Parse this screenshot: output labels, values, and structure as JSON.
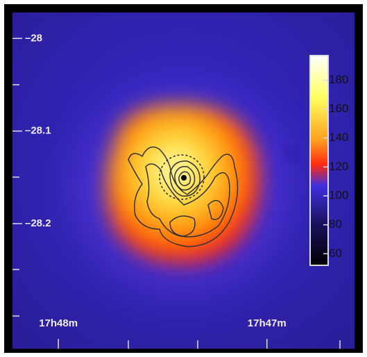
{
  "chart_data": {
    "type": "sky-map",
    "xlim": [
      1068.22,
      1066.58
    ],
    "xticks": [
      {
        "value": 1068,
        "label": "17h48m"
      },
      {
        "value": 1067,
        "label": "17h47m"
      }
    ],
    "ylim": [
      -28.335,
      -27.972
    ],
    "yticks": [
      {
        "value": -28,
        "label": "–28"
      },
      {
        "value": -28.1,
        "label": "–28.1"
      },
      {
        "value": -28.2,
        "label": "–28.2"
      }
    ],
    "colorbar": {
      "lim": [
        52,
        197
      ],
      "ticks": [
        60,
        80,
        100,
        120,
        140,
        160,
        180
      ]
    }
  }
}
